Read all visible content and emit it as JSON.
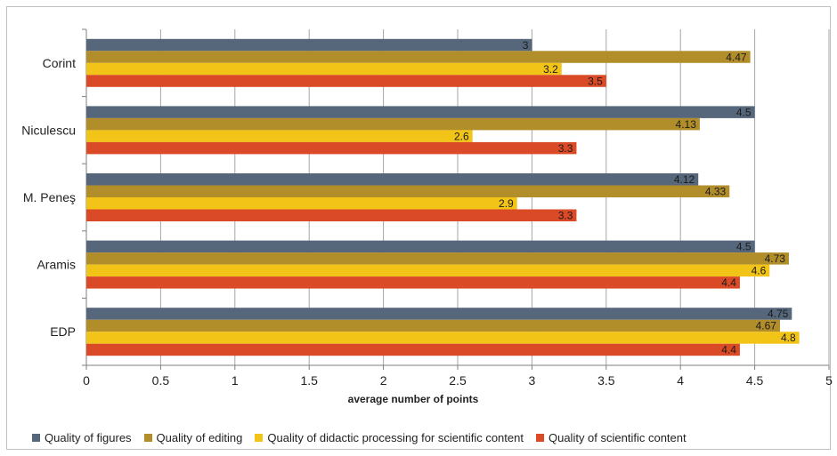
{
  "chart_data": {
    "type": "bar",
    "orientation": "horizontal",
    "categories": [
      "Corint",
      "Niculescu",
      "M. Peneş",
      "Aramis",
      "EDP"
    ],
    "series": [
      {
        "name": "Quality of figures",
        "color": "#56677c",
        "values": [
          3,
          4.5,
          4.12,
          4.5,
          4.75
        ],
        "labels": [
          "3",
          "4.5",
          "4.12",
          "4.5",
          "4.75"
        ]
      },
      {
        "name": "Quality of editing",
        "color": "#b28e2a",
        "values": [
          4.47,
          4.13,
          4.33,
          4.73,
          4.67
        ],
        "labels": [
          "4.47",
          "4.13",
          "4.33",
          "4.73",
          "4.67"
        ]
      },
      {
        "name": "Quality of didactic processing for scientific content",
        "color": "#f2c418",
        "values": [
          3.2,
          2.6,
          2.9,
          4.6,
          4.8
        ],
        "labels": [
          "3.2",
          "2.6",
          "2.9",
          "4.6",
          "4.8"
        ]
      },
      {
        "name": "Quality of scientific content",
        "color": "#db4a26",
        "values": [
          3.5,
          3.3,
          3.3,
          4.4,
          4.4
        ],
        "labels": [
          "3.5",
          "3.3",
          "3.3",
          "4.4",
          "4.4"
        ]
      }
    ],
    "xlabel": "average number of points",
    "ylabel": "",
    "xlim": [
      0,
      5
    ],
    "xticks": [
      "0",
      "0.5",
      "1",
      "1.5",
      "2",
      "2.5",
      "3",
      "3.5",
      "4",
      "4.5",
      "5"
    ],
    "grid": "vertical",
    "legend_position": "bottom"
  }
}
